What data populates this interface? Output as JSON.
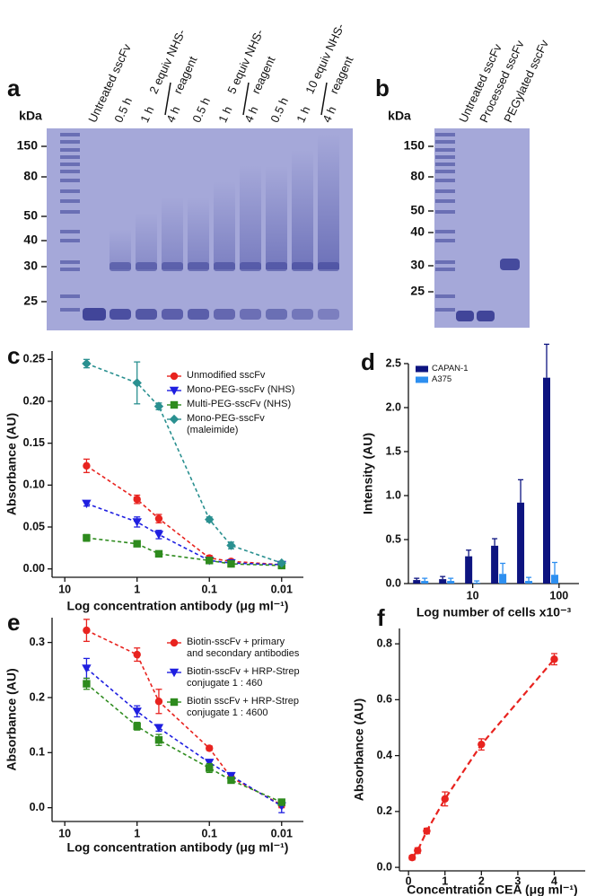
{
  "gels": [
    {
      "label": "a",
      "unit": "kDa",
      "markers": [
        150,
        80,
        50,
        40,
        30,
        25
      ],
      "lanes": [
        "Untreated sscFv",
        "0.5 h",
        "1 h",
        "4 h",
        "0.5 h",
        "1 h",
        "4 h",
        "0.5 h",
        "1 h",
        "4 h"
      ],
      "groups": [
        [
          "2 equiv NHS-",
          "reagent"
        ],
        [
          "5 equiv NHS-",
          "reagent"
        ],
        [
          "10 equiv NHS-",
          "reagent"
        ]
      ]
    },
    {
      "label": "b",
      "unit": "kDa",
      "markers": [
        150,
        80,
        50,
        40,
        30,
        25
      ],
      "lanes": [
        "Untreated sscFv",
        "Processed sscFv",
        "PEGylated sscFv"
      ]
    }
  ],
  "chart_data": [
    {
      "type": "line",
      "label": "c",
      "xlabel": "Log concentration antibody (μg ml⁻¹)",
      "ylabel": "Absorbance (AU)",
      "xlog": true,
      "xlim": [
        15,
        0.005
      ],
      "xticks": [
        10,
        1,
        0.1,
        0.01
      ],
      "ylim": [
        -0.01,
        0.26
      ],
      "yticks": [
        {
          "value": 0,
          "label": "0.00"
        },
        0.05,
        {
          "value": 0.1,
          "label": "0.10"
        },
        0.15,
        {
          "value": 0.2,
          "label": "0.20"
        },
        0.25
      ],
      "legend": "upper right",
      "x": [
        5,
        1,
        0.5,
        0.1,
        0.05,
        0.01
      ],
      "series": [
        {
          "name": "Unmodified sscFv",
          "color": "#e8231f",
          "marker": "circle",
          "values": [
            0.123,
            0.083,
            0.06,
            0.013,
            0.009,
            0.005
          ],
          "errors": [
            0.008,
            0.005,
            0.005,
            0.003,
            0.002,
            0.002
          ]
        },
        {
          "name": "Mono-PEG-sscFv (NHS)",
          "color": "#1f1fe0",
          "marker": "triangle-down",
          "values": [
            0.078,
            0.056,
            0.041,
            0.01,
            0.007,
            0.005
          ],
          "errors": [
            0.003,
            0.006,
            0.005,
            0.002,
            0.002,
            0.002
          ]
        },
        {
          "name": "Multi-PEG-sscFv (NHS)",
          "color": "#2e8b1e",
          "marker": "square",
          "values": [
            0.037,
            0.03,
            0.018,
            0.01,
            0.006,
            0.004
          ],
          "errors": [
            0.004,
            0.003,
            0.002,
            0.002,
            0.002,
            0.002
          ]
        },
        {
          "name": "Mono-PEG-sscFv (maleimide)",
          "color": "#2a9090",
          "marker": "diamond",
          "values": [
            0.245,
            0.222,
            0.194,
            0.059,
            0.028,
            0.007
          ],
          "errors": [
            0.005,
            0.025,
            0.004,
            0.003,
            0.004,
            0.002
          ]
        }
      ]
    },
    {
      "type": "bar",
      "label": "d",
      "xlabel": "Log number of cells x10⁻³",
      "ylabel": "Intensity (AU)",
      "xlog": true,
      "xlim": [
        1.8,
        170
      ],
      "xticks": [
        10,
        100
      ],
      "ylim": [
        0,
        2.5
      ],
      "yticks": [
        {
          "value": 0,
          "label": "0.0"
        },
        0.5,
        {
          "value": 1,
          "label": "1.0"
        },
        1.5,
        {
          "value": 2,
          "label": "2.0"
        },
        2.5
      ],
      "legend": "upper left",
      "x": [
        2.5,
        5,
        10,
        20,
        40,
        80
      ],
      "series": [
        {
          "name": "CAPAN-1",
          "color": "#0d1480",
          "values": [
            0.04,
            0.05,
            0.31,
            0.43,
            0.92,
            2.34
          ],
          "errors": [
            0.02,
            0.03,
            0.07,
            0.08,
            0.26,
            0.38
          ]
        },
        {
          "name": "A375",
          "color": "#2d8ff0",
          "values": [
            0.03,
            0.03,
            0.01,
            0.11,
            0.03,
            0.1
          ],
          "errors": [
            0.03,
            0.03,
            0.02,
            0.12,
            0.04,
            0.14
          ]
        }
      ]
    },
    {
      "type": "line",
      "label": "e",
      "xlabel": "Log concentration antibody (μg ml⁻¹)",
      "ylabel": "Absorbance (AU)",
      "xlog": true,
      "xlim": [
        15,
        0.005
      ],
      "xticks": [
        10,
        1,
        0.1,
        0.01
      ],
      "ylim": [
        -0.025,
        0.345
      ],
      "yticks": [
        {
          "value": 0,
          "label": "0.0"
        },
        0.1,
        0.2,
        0.3
      ],
      "legend": "upper right",
      "x": [
        5,
        1,
        0.5,
        0.1,
        0.05,
        0.01
      ],
      "series": [
        {
          "name": "Biotin-sscFv + primary and secondary antibodies",
          "color": "#e8231f",
          "marker": "circle",
          "values": [
            0.322,
            0.278,
            0.193,
            0.108,
            0.055,
            0.005
          ],
          "errors": [
            0.02,
            0.012,
            0.022,
            0.004,
            0.005,
            0.005
          ]
        },
        {
          "name": "Biotin-sscFv + HRP-Strep conjugate 1 : 460",
          "color": "#1f1fe0",
          "marker": "triangle-down",
          "values": [
            0.253,
            0.175,
            0.145,
            0.082,
            0.058,
            0.003
          ],
          "errors": [
            0.018,
            0.01,
            0.006,
            0.005,
            0.005,
            0.012
          ]
        },
        {
          "name": "Biotin sscFv + HRP-Strep conjugate 1 : 4600",
          "color": "#2e8b1e",
          "marker": "square",
          "values": [
            0.225,
            0.148,
            0.123,
            0.072,
            0.05,
            0.01
          ],
          "errors": [
            0.01,
            0.007,
            0.01,
            0.008,
            0.005,
            0.004
          ]
        }
      ]
    },
    {
      "type": "line",
      "label": "f",
      "xlabel": "Concentration CEA (μg ml⁻¹)",
      "ylabel": "Absorbance (AU)",
      "xlog": false,
      "xlim": [
        -0.25,
        4.85
      ],
      "xticks": [
        0,
        1,
        2,
        3,
        4
      ],
      "ylim": [
        -0.0125,
        0.855
      ],
      "yticks": [
        {
          "value": 0,
          "label": "0.0"
        },
        0.2,
        0.4,
        0.6,
        0.8
      ],
      "x": [
        0.1,
        0.25,
        0.5,
        1,
        2,
        4
      ],
      "series": [
        {
          "color": "#e8231f",
          "marker": "circle",
          "values": [
            0.035,
            0.06,
            0.13,
            0.245,
            0.44,
            0.745
          ],
          "errors": [
            0.008,
            0.01,
            0.01,
            0.025,
            0.02,
            0.02
          ]
        }
      ]
    }
  ]
}
